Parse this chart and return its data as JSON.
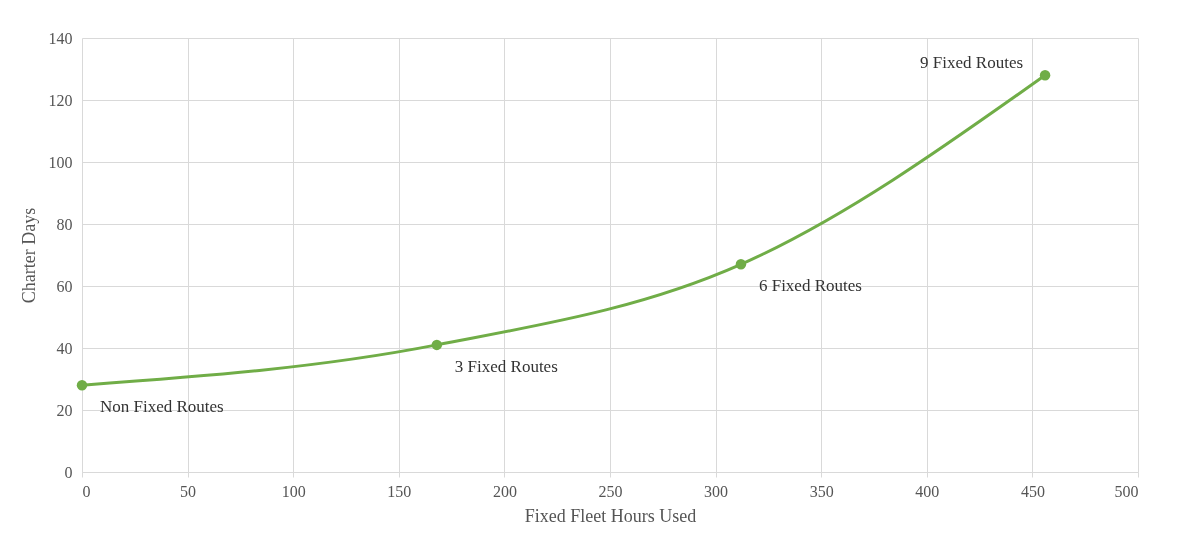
{
  "chart_data": {
    "type": "line",
    "xlabel": "Fixed Fleet Hours Used",
    "ylabel": "Charter Days",
    "x": [
      0,
      168,
      312,
      456
    ],
    "series": [
      {
        "color": "#70ad47",
        "values": [
          28,
          41,
          67,
          128
        ]
      }
    ],
    "xlim": [
      0,
      500
    ],
    "xticks": [
      0,
      50,
      100,
      150,
      200,
      250,
      300,
      350,
      400,
      450,
      500
    ],
    "ylim": [
      0,
      140
    ],
    "yticks": [
      0,
      20,
      40,
      60,
      80,
      100,
      120,
      140
    ],
    "grid": true,
    "marker": "circle",
    "line_style": "solid",
    "annotations": [
      {
        "text": "Non Fixed Routes",
        "x": 0,
        "y": 28
      },
      {
        "text": "3 Fixed Routes",
        "x": 168,
        "y": 41
      },
      {
        "text": "6 Fixed Routes",
        "x": 312,
        "y": 67
      },
      {
        "text": "9 Fixed Routes",
        "x": 456,
        "y": 128
      }
    ]
  }
}
